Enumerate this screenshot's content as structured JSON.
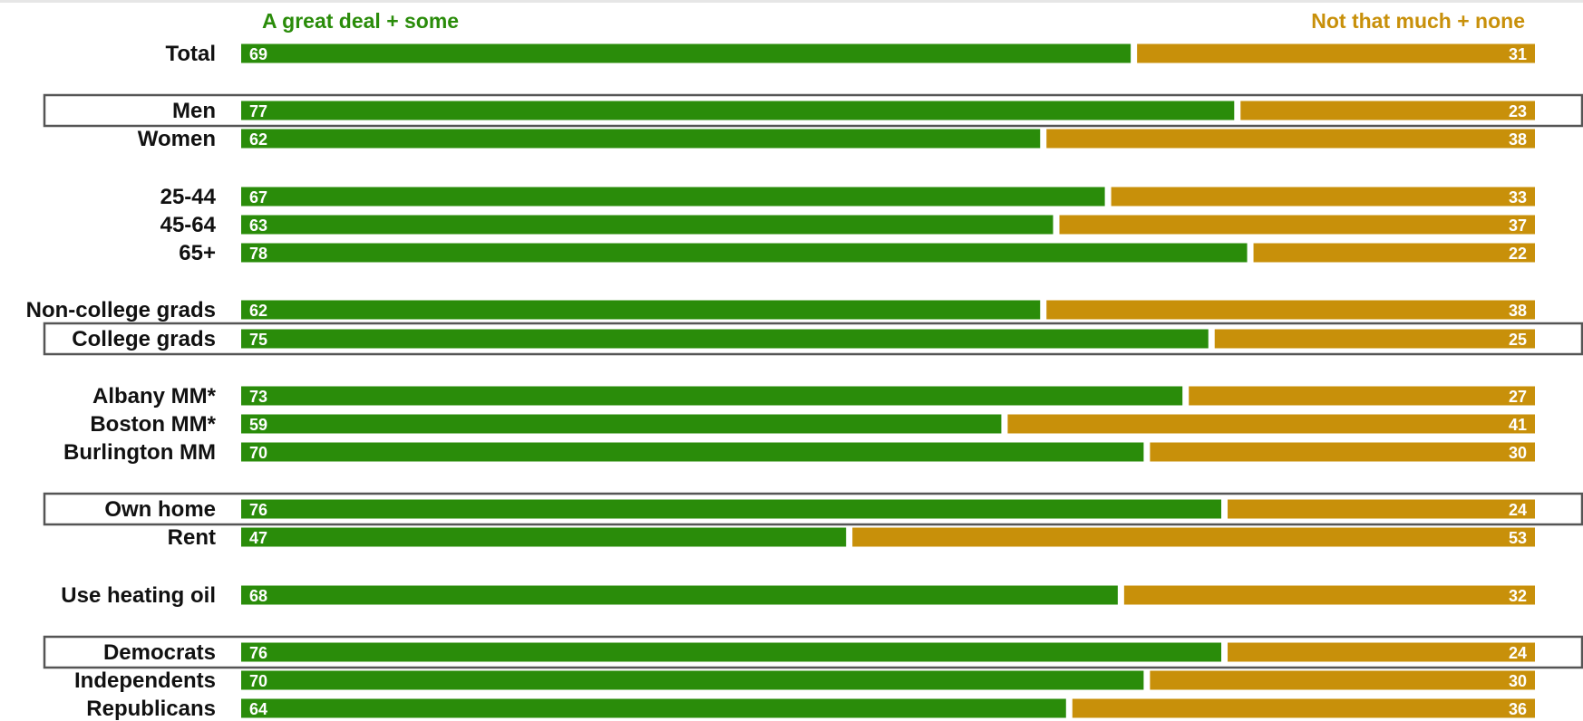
{
  "colors": {
    "positive": "#2a8c0a",
    "negative": "#c8900a",
    "highlight_box": "#555555"
  },
  "legend": {
    "positive_label": "A great deal + some",
    "negative_label": "Not that much + none"
  },
  "chart_data": {
    "type": "bar",
    "stacked": true,
    "orientation": "horizontal",
    "xlim": [
      0,
      100
    ],
    "legend_position": "top",
    "categories": [
      "Total",
      "Men",
      "Women",
      "25-44",
      "45-64",
      "65+",
      "Non-college grads",
      "College grads",
      "Albany MM*",
      "Boston MM*",
      "Burlington MM",
      "Own home",
      "Rent",
      "Use heating oil",
      "Democrats",
      "Independents",
      "Republicans"
    ],
    "highlighted": [
      "Men",
      "College grads",
      "Own home",
      "Democrats"
    ],
    "series": [
      {
        "name": "A great deal + some",
        "values": [
          69,
          77,
          62,
          67,
          63,
          78,
          62,
          75,
          73,
          59,
          70,
          76,
          47,
          68,
          76,
          70,
          64
        ]
      },
      {
        "name": "Not that much + none",
        "values": [
          31,
          23,
          38,
          33,
          37,
          22,
          38,
          25,
          27,
          41,
          30,
          24,
          53,
          32,
          24,
          30,
          36
        ]
      }
    ]
  }
}
